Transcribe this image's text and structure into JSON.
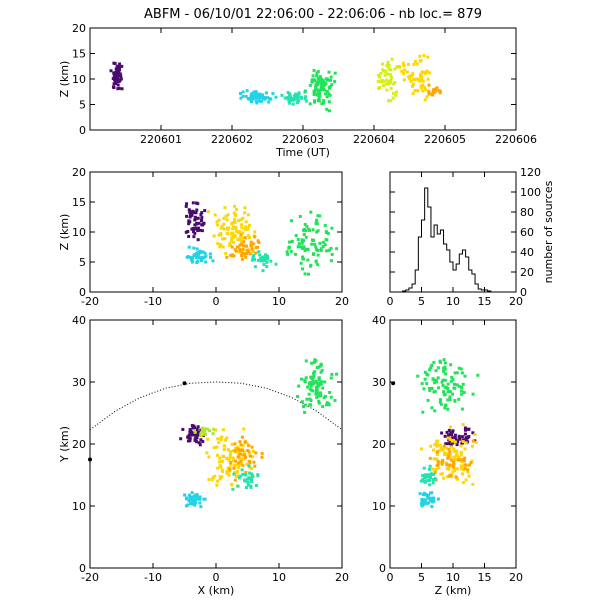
{
  "title": "ABFM - 06/10/01 22:06:00 - 22:06:06 - nb loc.=    879",
  "chart_data": [
    {
      "id": "time_height",
      "type": "scatter",
      "xlabel": "Time (UT)",
      "ylabel": "Z (km)",
      "xlim": [
        220600,
        220606
      ],
      "ylim": [
        0,
        20
      ],
      "xticks": [
        "220601",
        "220602",
        "220603",
        "220604",
        "220605",
        "220606"
      ],
      "yticks": [
        "0",
        "5",
        "10",
        "15",
        "20"
      ],
      "clusters": [
        {
          "x": [
            220600.25,
            220600.5
          ],
          "y": [
            7,
            14
          ],
          "color": "#4b0a6e",
          "n": 60
        },
        {
          "x": [
            220602.05,
            220602.65
          ],
          "y": [
            5,
            8
          ],
          "color": "#22d3e8",
          "n": 60
        },
        {
          "x": [
            220602.65,
            220603.1
          ],
          "y": [
            5,
            8
          ],
          "color": "#22e3b0",
          "n": 40
        },
        {
          "x": [
            220603.0,
            220603.5
          ],
          "y": [
            3,
            14
          ],
          "color": "#21e35a",
          "n": 90
        },
        {
          "x": [
            220604.0,
            220604.4
          ],
          "y": [
            4,
            16
          ],
          "color": "#d6ee1a",
          "n": 50
        },
        {
          "x": [
            220604.3,
            220604.9
          ],
          "y": [
            5,
            16
          ],
          "color": "#ffd700",
          "n": 60
        },
        {
          "x": [
            220604.7,
            220605.0
          ],
          "y": [
            6,
            9
          ],
          "color": "#ffa500",
          "n": 20
        }
      ]
    },
    {
      "id": "x_z",
      "type": "scatter",
      "xlabel": "",
      "ylabel": "Z (km)",
      "xlim": [
        -20,
        20
      ],
      "ylim": [
        0,
        20
      ],
      "xticks": [
        "-20",
        "-10",
        "0",
        "10",
        "20"
      ],
      "yticks": [
        "0",
        "5",
        "10",
        "15",
        "20"
      ],
      "clusters": [
        {
          "x": [
            -6,
            -1
          ],
          "y": [
            7,
            16
          ],
          "color": "#4b0a6e",
          "n": 60
        },
        {
          "x": [
            -6,
            0
          ],
          "y": [
            4,
            8
          ],
          "color": "#22d3e8",
          "n": 40
        },
        {
          "x": [
            -2,
            8
          ],
          "y": [
            4,
            16
          ],
          "color": "#ffd700",
          "n": 90
        },
        {
          "x": [
            1,
            8
          ],
          "y": [
            4,
            10
          ],
          "color": "#ffa500",
          "n": 40
        },
        {
          "x": [
            5,
            10
          ],
          "y": [
            3,
            8
          ],
          "color": "#22e3b0",
          "n": 30
        },
        {
          "x": [
            10,
            20
          ],
          "y": [
            2,
            15
          ],
          "color": "#21e35a",
          "n": 90
        }
      ]
    },
    {
      "id": "height_histogram",
      "type": "bar",
      "xlabel": "",
      "ylabel": "number of sources",
      "xlim": [
        0,
        20
      ],
      "ylim": [
        0,
        120
      ],
      "xticks": [
        "0",
        "5",
        "10",
        "15",
        "20"
      ],
      "yticks": [
        "0",
        "20",
        "40",
        "60",
        "80",
        "100",
        "120"
      ],
      "bin_edges": [
        0,
        0.5,
        1,
        1.5,
        2,
        2.5,
        3,
        3.5,
        4,
        4.5,
        5,
        5.5,
        6,
        6.5,
        7,
        7.5,
        8,
        8.5,
        9,
        9.5,
        10,
        10.5,
        11,
        11.5,
        12,
        12.5,
        13,
        13.5,
        14,
        14.5,
        15,
        15.5,
        16,
        16.5,
        17,
        17.5,
        18,
        18.5,
        19,
        19.5,
        20
      ],
      "values": [
        0,
        0,
        0,
        0,
        1,
        2,
        4,
        8,
        22,
        55,
        72,
        104,
        85,
        55,
        67,
        58,
        62,
        48,
        42,
        30,
        22,
        28,
        38,
        42,
        35,
        22,
        18,
        8,
        3,
        2,
        2,
        1,
        0,
        0,
        0,
        0,
        0,
        0,
        0,
        0
      ]
    },
    {
      "id": "x_y",
      "type": "scatter",
      "xlabel": "X (km)",
      "ylabel": "Y (km)",
      "xlim": [
        -20,
        20
      ],
      "ylim": [
        0,
        40
      ],
      "xticks": [
        "-20",
        "-10",
        "0",
        "10",
        "20"
      ],
      "yticks": [
        "0",
        "10",
        "20",
        "30",
        "40"
      ],
      "clusters": [
        {
          "x": [
            -6,
            -1
          ],
          "y": [
            19,
            24
          ],
          "color": "#4b0a6e",
          "n": 50
        },
        {
          "x": [
            -4,
            0
          ],
          "y": [
            21,
            23
          ],
          "color": "#a8e82a",
          "n": 20
        },
        {
          "x": [
            -6,
            -1
          ],
          "y": [
            9,
            13
          ],
          "color": "#22d3e8",
          "n": 40
        },
        {
          "x": [
            -3,
            8
          ],
          "y": [
            11,
            24
          ],
          "color": "#ffd700",
          "n": 100
        },
        {
          "x": [
            1,
            8
          ],
          "y": [
            13,
            22
          ],
          "color": "#ffa500",
          "n": 40
        },
        {
          "x": [
            2,
            8
          ],
          "y": [
            12,
            17
          ],
          "color": "#22e3b0",
          "n": 30
        },
        {
          "x": [
            12,
            20
          ],
          "y": [
            24,
            35
          ],
          "color": "#21e35a",
          "n": 90
        }
      ],
      "arc_points": [
        [
          -20,
          22.3
        ],
        [
          -16,
          25.3
        ],
        [
          -12,
          27.5
        ],
        [
          -8,
          29
        ],
        [
          -4,
          29.8
        ],
        [
          0,
          30
        ],
        [
          4,
          29.8
        ],
        [
          8,
          29
        ],
        [
          12,
          27.5
        ],
        [
          16,
          25.3
        ],
        [
          20,
          22.3
        ]
      ],
      "stations": [
        [
          -20,
          17.5
        ],
        [
          -5,
          29.8
        ]
      ]
    },
    {
      "id": "z_y",
      "type": "scatter",
      "xlabel": "Z (km)",
      "ylabel": "",
      "xlim": [
        0,
        20
      ],
      "ylim": [
        0,
        40
      ],
      "xticks": [
        "0",
        "5",
        "10",
        "15",
        "20"
      ],
      "yticks": [
        "0",
        "10",
        "20",
        "30",
        "40"
      ],
      "clusters": [
        {
          "x": [
            7,
            14
          ],
          "y": [
            19,
            24
          ],
          "color": "#4b0a6e",
          "n": 50
        },
        {
          "x": [
            4,
            8
          ],
          "y": [
            9,
            13
          ],
          "color": "#22d3e8",
          "n": 40
        },
        {
          "x": [
            4,
            15
          ],
          "y": [
            11,
            24
          ],
          "color": "#ffd700",
          "n": 100
        },
        {
          "x": [
            5,
            14
          ],
          "y": [
            13,
            22
          ],
          "color": "#ffa500",
          "n": 40
        },
        {
          "x": [
            4,
            8
          ],
          "y": [
            12,
            17
          ],
          "color": "#22e3b0",
          "n": 30
        },
        {
          "x": [
            3,
            15
          ],
          "y": [
            24,
            35
          ],
          "color": "#21e35a",
          "n": 90
        }
      ],
      "stations": [
        [
          0.5,
          29.8
        ]
      ]
    }
  ]
}
